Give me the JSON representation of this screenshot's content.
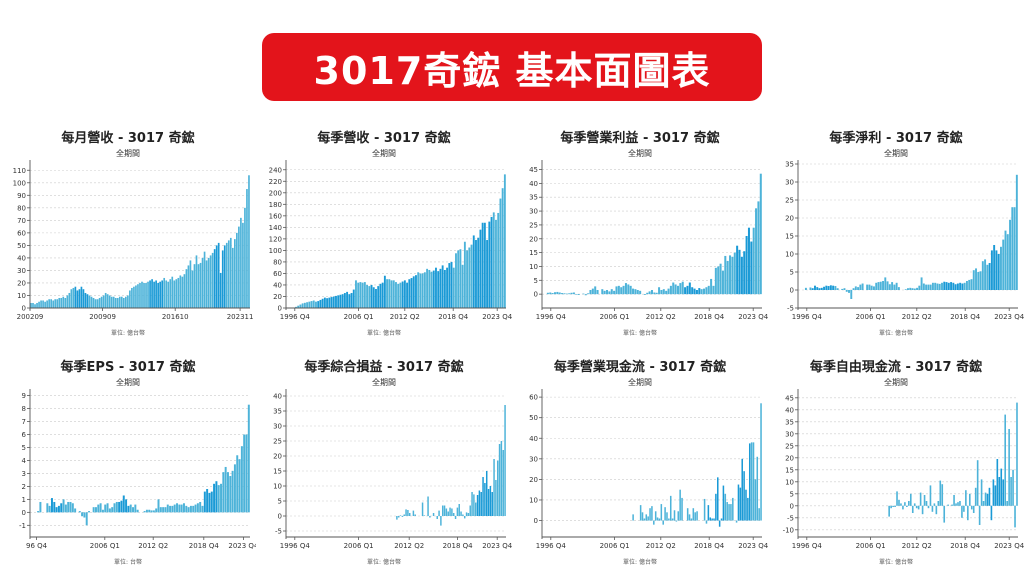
{
  "header": {
    "title": "3017奇鋐 基本面圖表"
  },
  "colors": {
    "banner": "#e3141b",
    "bar": "#4db3d9",
    "bar_dark": "#1a9ad6",
    "grid": "#cccccc",
    "axis": "#555555"
  },
  "chart_data": [
    {
      "id": "monthly-revenue",
      "type": "bar",
      "title": "每月營收 - 3017 奇鋐",
      "subtitle": "全期間",
      "unit": "單位: 億台幣",
      "ylim": [
        0,
        115
      ],
      "yticks": [
        0,
        10,
        20,
        30,
        40,
        50,
        60,
        70,
        80,
        90,
        100,
        110
      ],
      "xticks": [
        "200209",
        "200909",
        "201610",
        "202311"
      ],
      "xtick_pos": [
        0.0,
        0.33,
        0.66,
        0.955
      ],
      "grid": true,
      "values": [
        4,
        4,
        3,
        4,
        5,
        6,
        6,
        5,
        6,
        7,
        7,
        6,
        7,
        7,
        8,
        8,
        9,
        8,
        10,
        12,
        15,
        16,
        17,
        14,
        15,
        17,
        15,
        12,
        11,
        10,
        9,
        8,
        7,
        7,
        8,
        9,
        10,
        12,
        11,
        10,
        9,
        9,
        8,
        8,
        9,
        9,
        8,
        9,
        10,
        14,
        16,
        17,
        18,
        19,
        20,
        21,
        20,
        20,
        21,
        22,
        23,
        21,
        22,
        20,
        21,
        22,
        24,
        22,
        21,
        23,
        25,
        22,
        23,
        24,
        26,
        25,
        27,
        31,
        34,
        38,
        30,
        35,
        42,
        35,
        36,
        40,
        45,
        38,
        40,
        42,
        44,
        47,
        50,
        52,
        28,
        46,
        50,
        52,
        54,
        56,
        48,
        55,
        60,
        65,
        72,
        68,
        80,
        95,
        106
      ],
      "dark_ranges": [
        [
          22,
          28
        ],
        [
          59,
          65
        ],
        [
          91,
          96
        ]
      ]
    },
    {
      "id": "quarterly-revenue",
      "type": "bar",
      "title": "每季營收 - 3017 奇鋐",
      "subtitle": "全期間",
      "unit": "單位: 億台幣",
      "ylim": [
        0,
        250
      ],
      "yticks": [
        0,
        20,
        40,
        60,
        80,
        100,
        120,
        140,
        160,
        180,
        200,
        220,
        240
      ],
      "xticks": [
        "1996 Q4",
        "2006 Q1",
        "2012 Q2",
        "2018 Q4",
        "2023 Q4"
      ],
      "xtick_pos": [
        0.04,
        0.33,
        0.54,
        0.76,
        0.96
      ],
      "grid": true,
      "values": [
        0,
        0,
        0,
        0,
        2,
        4,
        6,
        8,
        9,
        10,
        11,
        12,
        13,
        11,
        12,
        14,
        16,
        18,
        17,
        18,
        19,
        20,
        21,
        22,
        23,
        24,
        26,
        28,
        24,
        26,
        32,
        48,
        44,
        45,
        44,
        45,
        40,
        38,
        40,
        36,
        33,
        38,
        42,
        44,
        56,
        50,
        50,
        48,
        48,
        45,
        42,
        44,
        46,
        48,
        44,
        50,
        52,
        55,
        57,
        62,
        60,
        60,
        62,
        68,
        66,
        63,
        65,
        70,
        64,
        68,
        74,
        66,
        70,
        78,
        80,
        70,
        95,
        100,
        102,
        75,
        115,
        100,
        105,
        110,
        126,
        118,
        122,
        136,
        148,
        148,
        118,
        150,
        158,
        166,
        153,
        165,
        190,
        208,
        232
      ],
      "dark_ranges": [
        [
          14,
          30
        ],
        [
          38,
          44
        ],
        [
          52,
          58
        ],
        [
          66,
          74
        ],
        [
          84,
          92
        ]
      ]
    },
    {
      "id": "quarterly-operating-income",
      "type": "bar",
      "title": "每季營業利益 - 3017 奇鋐",
      "subtitle": "全期間",
      "unit": "單位: 億台幣",
      "ylim": [
        -5,
        47
      ],
      "yticks": [
        0,
        5,
        10,
        15,
        20,
        25,
        30,
        35,
        40,
        45
      ],
      "xticks": [
        "1996 Q4",
        "2006 Q1",
        "2012 Q2",
        "2018 Q4",
        "2023 Q4"
      ],
      "xtick_pos": [
        0.04,
        0.33,
        0.54,
        0.76,
        0.96
      ],
      "grid": true,
      "values": [
        0,
        0,
        0.5,
        0.6,
        0.4,
        0.7,
        0.8,
        0.6,
        0.4,
        0.3,
        0.2,
        0.3,
        0.5,
        0.6,
        -0.2,
        -0.3,
        0,
        0.2,
        -0.4,
        0.3,
        1.5,
        2,
        2.8,
        1.5,
        0,
        1.8,
        1.2,
        1.5,
        1,
        1.8,
        1.2,
        2.8,
        3,
        2.5,
        3,
        4,
        3.5,
        3,
        2,
        1.8,
        1.5,
        1.2,
        0,
        -0.3,
        0.5,
        1,
        1.5,
        0.6,
        0.5,
        2.5,
        1.5,
        1.8,
        1.2,
        2,
        3,
        4.2,
        3.5,
        3,
        4,
        4.5,
        2.5,
        3,
        4.2,
        2.5,
        2,
        1.5,
        2.2,
        1.8,
        2,
        2.5,
        3,
        5.5,
        3,
        9.5,
        10,
        11,
        8.5,
        13.8,
        12,
        14,
        13.5,
        15,
        17.5,
        16,
        13.5,
        15.5,
        21,
        24,
        19,
        24,
        31,
        33.5,
        43.5
      ],
      "dark_ranges": [
        [
          60,
          66
        ],
        [
          82,
          88
        ]
      ]
    },
    {
      "id": "quarterly-net-income",
      "type": "bar",
      "title": "每季淨利 - 3017 奇鋐",
      "subtitle": "全期間",
      "unit": "單位: 億台幣",
      "ylim": [
        -5,
        35
      ],
      "yticks": [
        -5,
        0,
        5,
        10,
        15,
        20,
        25,
        30,
        35
      ],
      "xticks": [
        "1996 Q4",
        "2006 Q1",
        "2012 Q2",
        "2018 Q4",
        "2023 Q4"
      ],
      "xtick_pos": [
        0.04,
        0.33,
        0.54,
        0.76,
        0.96
      ],
      "grid": true,
      "values": [
        0,
        0,
        0,
        0.6,
        0,
        0.7,
        0.5,
        1.2,
        0.8,
        0.5,
        0.6,
        0.9,
        1.2,
        1.1,
        1.3,
        1.2,
        1.1,
        0.5,
        0,
        0.3,
        0.5,
        -0.5,
        -0.8,
        -2.5,
        0.5,
        1,
        0.8,
        1.5,
        1.8,
        0,
        1.5,
        1.5,
        1.2,
        1,
        2,
        2.2,
        2.3,
        2.5,
        3.5,
        2.4,
        1.6,
        2.2,
        1.5,
        2,
        0.8,
        0,
        0,
        0.2,
        0.5,
        0.6,
        0.5,
        0.4,
        0.6,
        1.2,
        3.5,
        1.8,
        1.5,
        1.5,
        1.5,
        2,
        2,
        1.8,
        1.7,
        2,
        2.3,
        2.2,
        2,
        2.2,
        2,
        1.6,
        1.8,
        2,
        1.8,
        2,
        2.5,
        2.8,
        3,
        5.5,
        6,
        5,
        5.2,
        8,
        8.5,
        7,
        7.5,
        11,
        12.5,
        11,
        10,
        12,
        14,
        16.5,
        15.5,
        19.5,
        23,
        23,
        32
      ],
      "dark_ranges": [
        [
          6,
          15
        ],
        [
          64,
          72
        ],
        [
          84,
          88
        ]
      ]
    },
    {
      "id": "quarterly-eps",
      "type": "bar",
      "title": "每季EPS - 3017 奇鋐",
      "subtitle": "全期間",
      "unit": "單位: 台幣",
      "ylim": [
        -1.9,
        9.2
      ],
      "yticks": [
        -1,
        0,
        1,
        2,
        3,
        4,
        5,
        6,
        7,
        8,
        9
      ],
      "xticks": [
        "96 Q4",
        "2006 Q1",
        "2012 Q2",
        "2018 Q4",
        "2023 Q4"
      ],
      "xtick_pos": [
        0.03,
        0.34,
        0.56,
        0.79,
        0.97
      ],
      "grid": true,
      "values": [
        0,
        0,
        0,
        0.1,
        0.8,
        0,
        0,
        0.7,
        0.5,
        1.1,
        0.8,
        0.4,
        0.5,
        0.7,
        1,
        0.6,
        0.8,
        0.8,
        0.7,
        0.3,
        0,
        0.1,
        -0.3,
        -0.4,
        -1,
        0.1,
        0,
        0.4,
        0.4,
        0.6,
        0.7,
        0.2,
        0.6,
        0.7,
        0.3,
        0.4,
        0.7,
        0.8,
        0.8,
        0.9,
        1.3,
        1,
        0.5,
        0.6,
        0.4,
        0.6,
        0.2,
        0,
        0,
        0.1,
        0.2,
        0.2,
        0.15,
        0.15,
        0.3,
        1,
        0.4,
        0.4,
        0.4,
        0.6,
        0.5,
        0.5,
        0.6,
        0.7,
        0.6,
        0.6,
        0.7,
        0.5,
        0.4,
        0.5,
        0.5,
        0.6,
        0.7,
        0.8,
        0.5,
        1.6,
        1.8,
        1.5,
        1.6,
        2.2,
        2.4,
        2.1,
        2.2,
        3.1,
        3.5,
        3.1,
        2.8,
        3.2,
        3.7,
        4.4,
        4.1,
        5.1,
        6,
        6,
        8.3
      ],
      "dark_ranges": [
        [
          9,
          13
        ],
        [
          38,
          42
        ],
        [
          75,
          80
        ]
      ]
    },
    {
      "id": "quarterly-comprehensive-income",
      "type": "bar",
      "title": "每季綜合損益 - 3017 奇鋐",
      "subtitle": "全期間",
      "unit": "單位: 億台幣",
      "ylim": [
        -7,
        41
      ],
      "yticks": [
        -5,
        0,
        5,
        10,
        15,
        20,
        25,
        30,
        35,
        40
      ],
      "xticks": [
        "1996 Q4",
        "2006 Q1",
        "2012 Q2",
        "2018 Q4",
        "2023 Q4"
      ],
      "xtick_pos": [
        0.04,
        0.33,
        0.56,
        0.78,
        0.96
      ],
      "grid": true,
      "offset": 0.5,
      "values": [
        -1.2,
        -0.5,
        0.2,
        -0.3,
        0.5,
        2.2,
        2,
        1,
        0,
        1.8,
        0.5,
        0,
        0,
        0,
        4.5,
        0.2,
        0,
        6.5,
        -0.5,
        0,
        1,
        0,
        -1,
        1.8,
        -3.2,
        3.5,
        3.5,
        2.5,
        1.5,
        2.8,
        2.5,
        1,
        -1,
        2.8,
        4,
        1.5,
        0.5,
        -0.8,
        1.2,
        1,
        3.5,
        8,
        7.2,
        4.5,
        7,
        8.5,
        8,
        13,
        11,
        15,
        9,
        10,
        8,
        19,
        12,
        18.5,
        24,
        25,
        22,
        37
      ],
      "dark_ranges": [
        [
          44,
          52
        ]
      ]
    },
    {
      "id": "quarterly-operating-cash-flow",
      "type": "bar",
      "title": "每季營業現金流 - 3017 奇鋐",
      "subtitle": "全期間",
      "unit": "單位: 億台幣",
      "ylim": [
        -8,
        62
      ],
      "yticks": [
        0,
        10,
        20,
        30,
        40,
        50,
        60
      ],
      "xticks": [
        "1996 Q4",
        "2006 Q1",
        "2012 Q2",
        "2018 Q4",
        "2023 Q4"
      ],
      "xtick_pos": [
        0.04,
        0.33,
        0.54,
        0.76,
        0.96
      ],
      "grid": true,
      "offset": 0.41,
      "values": [
        3,
        0,
        0,
        0,
        7.5,
        4,
        1,
        3,
        2,
        6,
        7,
        -2,
        4.5,
        1.5,
        1,
        8,
        -2,
        6.5,
        4,
        1,
        12,
        1,
        5,
        -0.5,
        4.5,
        15,
        11,
        0,
        0,
        6,
        3,
        1,
        6,
        4,
        4.5,
        0,
        0,
        0,
        10.5,
        -1.5,
        7.5,
        1.5,
        1,
        1,
        13,
        21,
        -3,
        1,
        17,
        13,
        9,
        8,
        8,
        11,
        0,
        -1,
        17.5,
        16,
        30,
        24,
        15,
        11,
        37.5,
        38,
        38,
        20,
        31,
        6,
        57
      ],
      "dark_ranges": [
        [
          40,
          48
        ],
        [
          56,
          62
        ]
      ]
    },
    {
      "id": "quarterly-free-cash-flow",
      "type": "bar",
      "title": "每季自由現金流 - 3017 奇鋐",
      "subtitle": "全期間",
      "unit": "單位: 億台幣",
      "ylim": [
        -13,
        47
      ],
      "yticks": [
        -10,
        -5,
        0,
        5,
        10,
        15,
        20,
        25,
        30,
        35,
        40,
        45
      ],
      "xticks": [
        "1996 Q4",
        "2006 Q1",
        "2012 Q2",
        "2018 Q4",
        "2023 Q4"
      ],
      "xtick_pos": [
        0.04,
        0.33,
        0.54,
        0.76,
        0.96
      ],
      "grid": true,
      "offset": 0.41,
      "values": [
        -4.5,
        -1,
        -0.5,
        -0.5,
        6,
        2.5,
        1,
        -1.5,
        1.5,
        -0.5,
        2,
        5,
        -3,
        1,
        -1,
        -1.5,
        5.5,
        -3.5,
        4.5,
        2,
        -1,
        8.5,
        -2.5,
        1,
        -3.5,
        2,
        10.5,
        9,
        -7,
        0,
        0.5,
        0,
        0.5,
        4.5,
        1,
        1.5,
        2,
        -5,
        -2.5,
        6.5,
        -6,
        5,
        -1.5,
        -3,
        7.5,
        19,
        -8,
        11,
        2,
        5.5,
        5,
        7.5,
        -6,
        11,
        8.5,
        19.5,
        12,
        15.5,
        11,
        38,
        2,
        32,
        12,
        15,
        -9,
        43
      ],
      "dark_ranges": [
        [
          50,
          58
        ]
      ]
    }
  ]
}
